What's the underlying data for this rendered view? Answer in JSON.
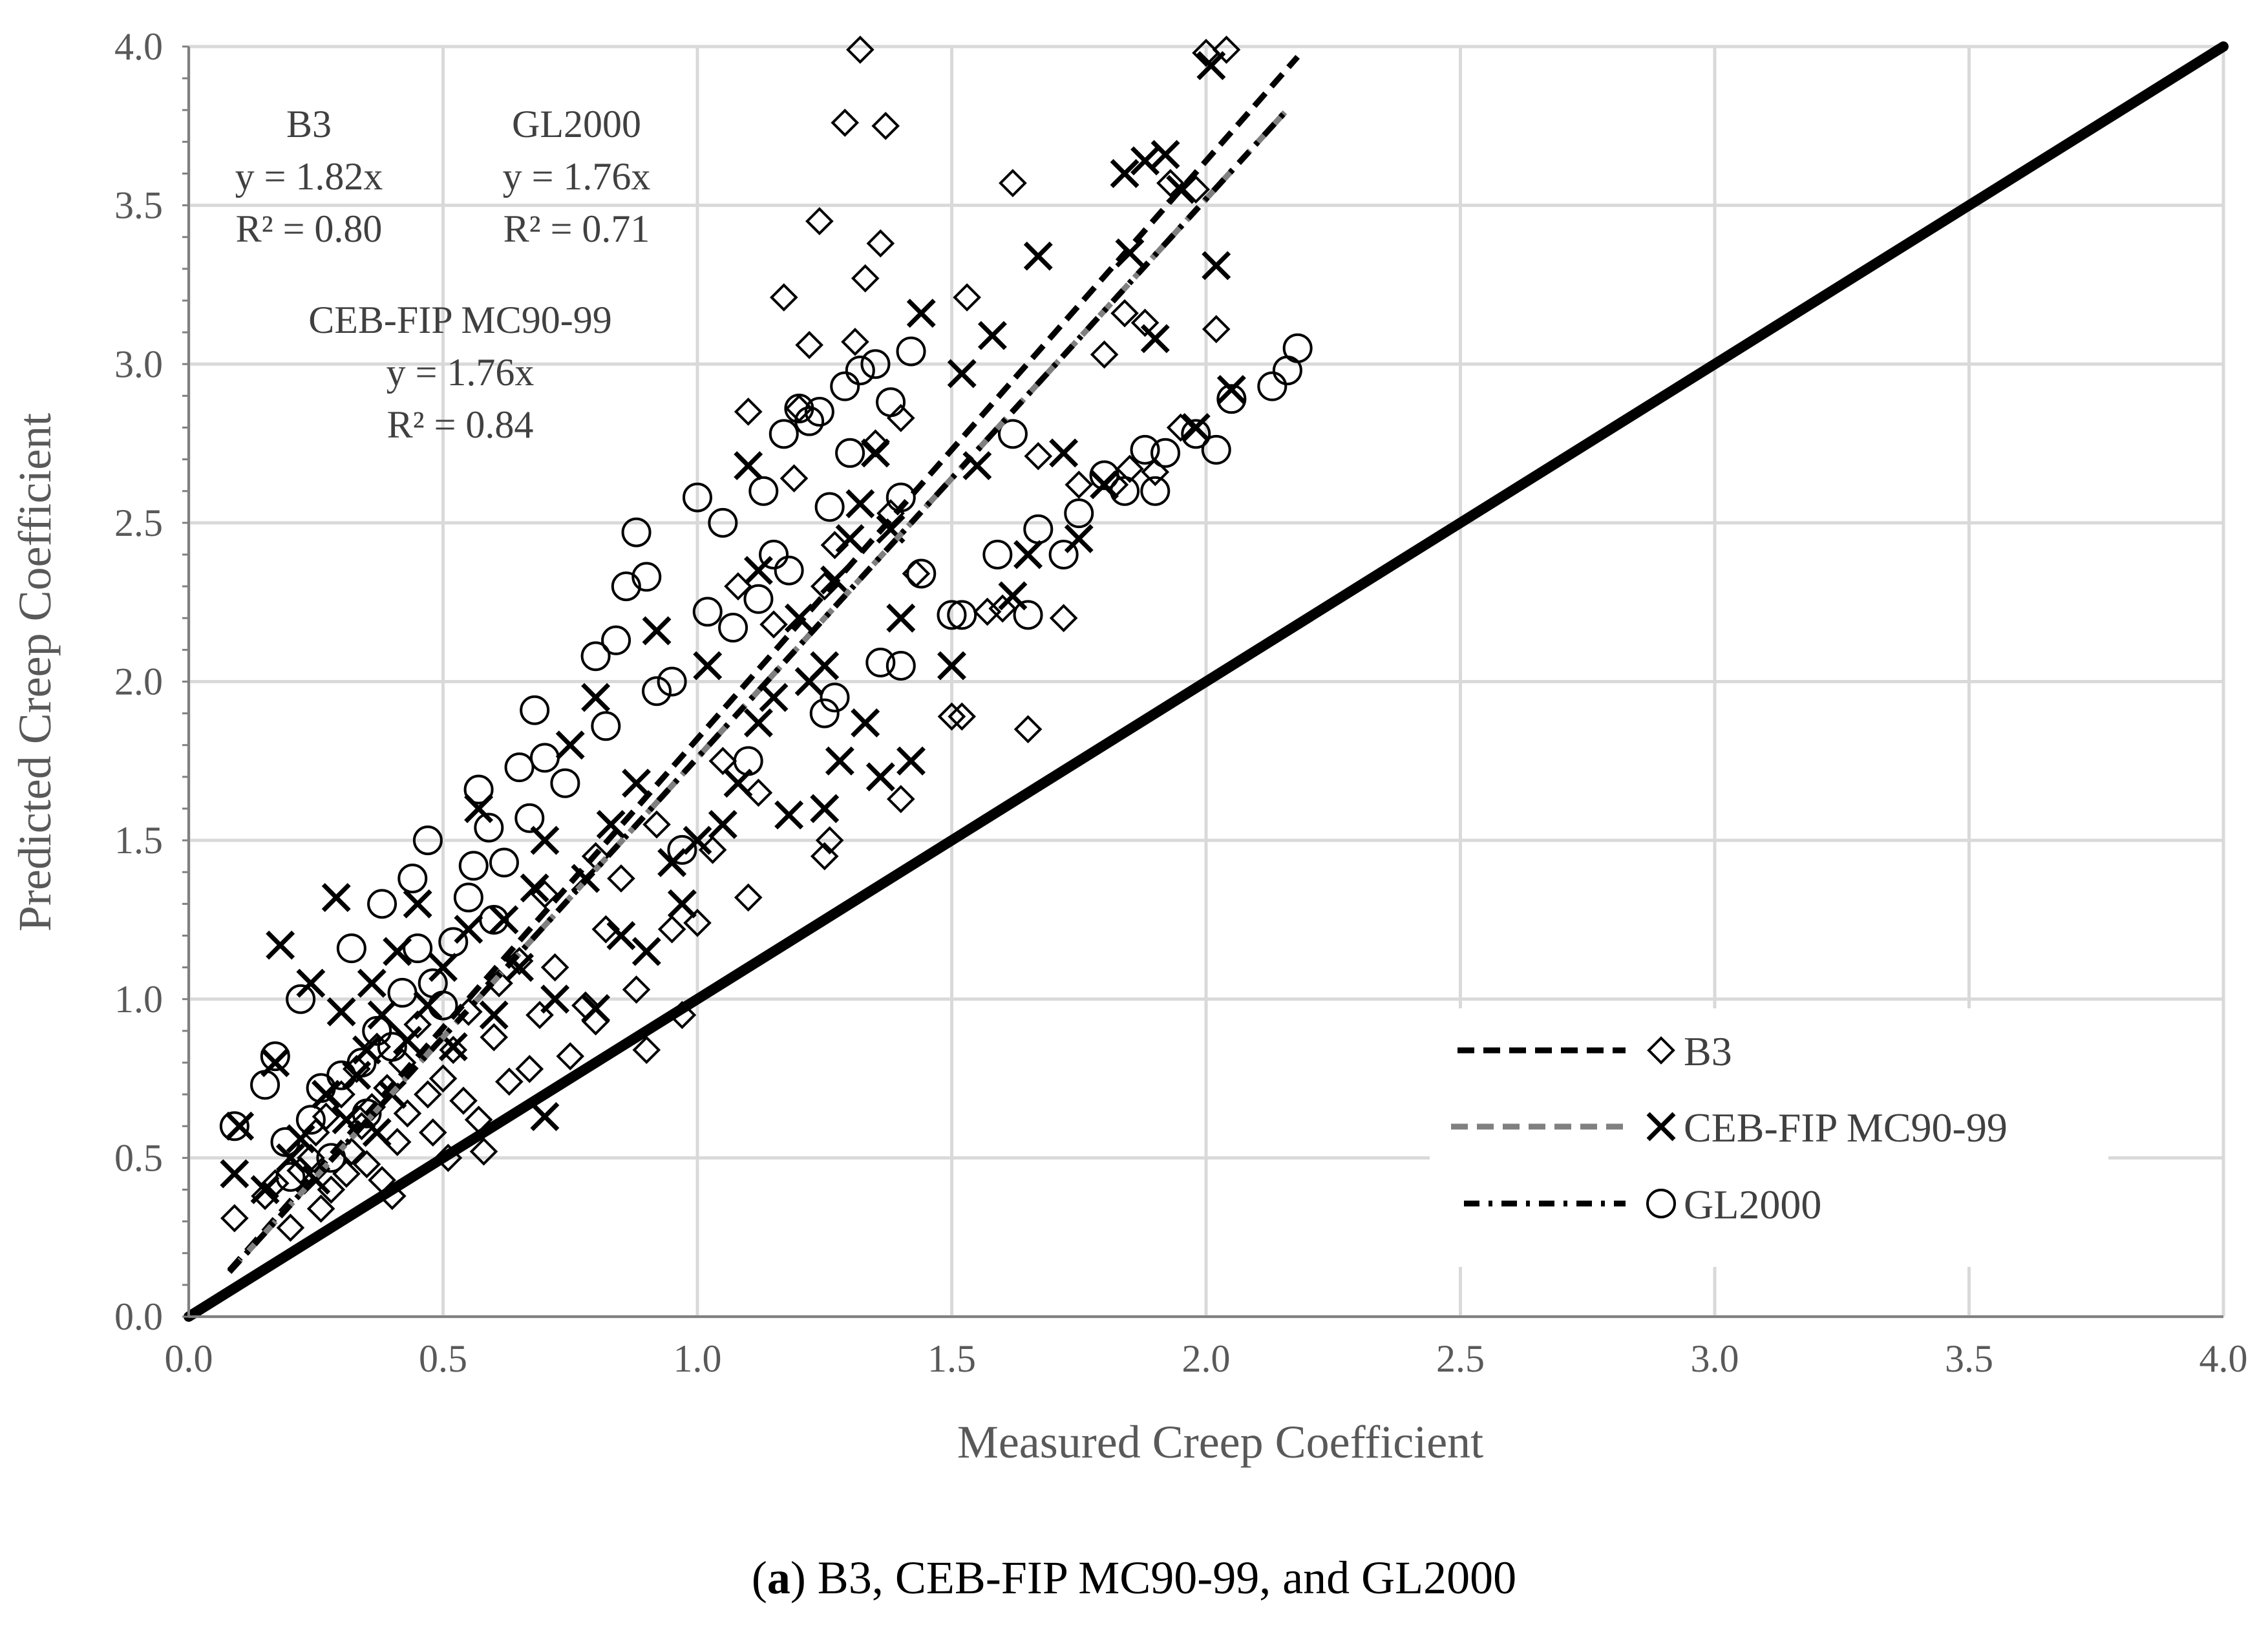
{
  "colors": {
    "grid": "#d9d9d9",
    "text": "#595959",
    "black": "#000000",
    "gray_dash": "#808080"
  },
  "caption": {
    "label": "a",
    "text": ") B3, CEB-FIP MC90-99, and GL2000",
    "open": "("
  },
  "chart_data": {
    "type": "scatter",
    "xlabel": "Measured Creep Coefficient",
    "ylabel": "Predicted Creep Coefficient",
    "xlim": [
      0,
      4
    ],
    "ylim": [
      0,
      4
    ],
    "xticks": [
      "0.0",
      "0.5",
      "1.0",
      "1.5",
      "2.0",
      "2.5",
      "3.0",
      "3.5",
      "4.0"
    ],
    "yticks": [
      "0.0",
      "0.5",
      "1.0",
      "1.5",
      "2.0",
      "2.5",
      "3.0",
      "3.5",
      "4.0"
    ],
    "grid": true,
    "legend_position": "bottom-right",
    "equality_line": {
      "x": [
        0,
        4
      ],
      "y": [
        0,
        4
      ]
    },
    "annotations": [
      {
        "lines": [
          "B3",
          "y = 1.82x",
          "R² = 0.80"
        ]
      },
      {
        "lines": [
          "GL2000",
          "y = 1.76x",
          "R² = 0.71"
        ]
      },
      {
        "lines": [
          "CEB-FIP MC90-99",
          "y = 1.76x",
          "R² = 0.84"
        ]
      }
    ],
    "series": [
      {
        "name": "B3",
        "marker": "diamond",
        "trend_style": "dashed",
        "trend_color": "#000000",
        "trend_slope": 1.82,
        "trend_x": [
          0.08,
          2.18
        ],
        "points": [
          [
            0.09,
            0.31
          ],
          [
            0.15,
            0.38
          ],
          [
            0.17,
            0.42
          ],
          [
            0.2,
            0.28
          ],
          [
            0.22,
            0.46
          ],
          [
            0.24,
            0.5
          ],
          [
            0.25,
            0.58
          ],
          [
            0.26,
            0.34
          ],
          [
            0.27,
            0.63
          ],
          [
            0.28,
            0.4
          ],
          [
            0.3,
            0.7
          ],
          [
            0.31,
            0.45
          ],
          [
            0.32,
            0.52
          ],
          [
            0.33,
            0.78
          ],
          [
            0.34,
            0.6
          ],
          [
            0.35,
            0.48
          ],
          [
            0.36,
            0.66
          ],
          [
            0.37,
            0.85
          ],
          [
            0.38,
            0.43
          ],
          [
            0.39,
            0.72
          ],
          [
            0.4,
            0.38
          ],
          [
            0.41,
            0.55
          ],
          [
            0.42,
            0.8
          ],
          [
            0.43,
            0.64
          ],
          [
            0.45,
            0.92
          ],
          [
            0.47,
            0.7
          ],
          [
            0.48,
            0.58
          ],
          [
            0.5,
            0.75
          ],
          [
            0.51,
            0.5
          ],
          [
            0.52,
            0.84
          ],
          [
            0.54,
            0.68
          ],
          [
            0.55,
            0.96
          ],
          [
            0.57,
            0.62
          ],
          [
            0.58,
            0.52
          ],
          [
            0.6,
            0.88
          ],
          [
            0.61,
            1.05
          ],
          [
            0.63,
            0.74
          ],
          [
            0.65,
            1.12
          ],
          [
            0.67,
            0.78
          ],
          [
            0.69,
            0.95
          ],
          [
            0.7,
            1.33
          ],
          [
            0.72,
            1.1
          ],
          [
            0.75,
            0.82
          ],
          [
            0.78,
            0.98
          ],
          [
            0.8,
            0.93
          ],
          [
            0.8,
            1.45
          ],
          [
            0.82,
            1.22
          ],
          [
            0.85,
            1.38
          ],
          [
            0.88,
            1.03
          ],
          [
            0.9,
            0.84
          ],
          [
            0.92,
            1.55
          ],
          [
            0.95,
            1.22
          ],
          [
            0.97,
            0.95
          ],
          [
            1.0,
            1.24
          ],
          [
            1.03,
            1.47
          ],
          [
            1.05,
            1.75
          ],
          [
            1.08,
            2.3
          ],
          [
            1.1,
            1.32
          ],
          [
            1.1,
            2.85
          ],
          [
            1.12,
            1.65
          ],
          [
            1.15,
            2.18
          ],
          [
            1.17,
            3.21
          ],
          [
            1.19,
            2.64
          ],
          [
            1.2,
            2.86
          ],
          [
            1.22,
            3.06
          ],
          [
            1.24,
            3.45
          ],
          [
            1.25,
            2.3
          ],
          [
            1.25,
            1.45
          ],
          [
            1.26,
            1.5
          ],
          [
            1.27,
            2.43
          ],
          [
            1.29,
            3.76
          ],
          [
            1.31,
            3.07
          ],
          [
            1.32,
            3.99
          ],
          [
            1.33,
            3.27
          ],
          [
            1.35,
            2.75
          ],
          [
            1.36,
            3.38
          ],
          [
            1.37,
            3.75
          ],
          [
            1.38,
            2.53
          ],
          [
            1.4,
            1.63
          ],
          [
            1.4,
            2.83
          ],
          [
            1.43,
            2.34
          ],
          [
            1.5,
            1.89
          ],
          [
            1.52,
            1.89
          ],
          [
            1.53,
            3.21
          ],
          [
            1.57,
            2.22
          ],
          [
            1.6,
            2.23
          ],
          [
            1.62,
            3.57
          ],
          [
            1.65,
            1.85
          ],
          [
            1.67,
            2.71
          ],
          [
            1.72,
            2.2
          ],
          [
            1.75,
            2.62
          ],
          [
            1.8,
            3.03
          ],
          [
            1.82,
            2.62
          ],
          [
            1.84,
            3.16
          ],
          [
            1.85,
            2.67
          ],
          [
            1.88,
            3.13
          ],
          [
            1.9,
            2.66
          ],
          [
            1.93,
            3.57
          ],
          [
            1.95,
            2.8
          ],
          [
            1.98,
            3.55
          ],
          [
            2.0,
            3.98
          ],
          [
            2.02,
            3.11
          ],
          [
            2.04,
            3.99
          ]
        ]
      },
      {
        "name": "CEB-FIP MC90-99",
        "marker": "x",
        "trend_style": "dashed",
        "trend_color": "#808080",
        "trend_slope": 1.76,
        "trend_x": [
          0.08,
          2.16
        ],
        "points": [
          [
            0.09,
            0.45
          ],
          [
            0.1,
            0.6
          ],
          [
            0.15,
            0.4
          ],
          [
            0.17,
            0.8
          ],
          [
            0.18,
            1.17
          ],
          [
            0.2,
            0.5
          ],
          [
            0.22,
            0.56
          ],
          [
            0.24,
            1.05
          ],
          [
            0.25,
            0.43
          ],
          [
            0.27,
            0.7
          ],
          [
            0.29,
            1.32
          ],
          [
            0.3,
            0.96
          ],
          [
            0.31,
            0.62
          ],
          [
            0.33,
            0.76
          ],
          [
            0.35,
            0.84
          ],
          [
            0.36,
            1.05
          ],
          [
            0.37,
            0.58
          ],
          [
            0.38,
            0.95
          ],
          [
            0.4,
            0.7
          ],
          [
            0.41,
            1.15
          ],
          [
            0.43,
            0.87
          ],
          [
            0.45,
            1.3
          ],
          [
            0.47,
            0.98
          ],
          [
            0.5,
            1.1
          ],
          [
            0.52,
            0.85
          ],
          [
            0.55,
            1.22
          ],
          [
            0.57,
            1.6
          ],
          [
            0.6,
            0.95
          ],
          [
            0.62,
            1.25
          ],
          [
            0.65,
            1.1
          ],
          [
            0.68,
            1.35
          ],
          [
            0.7,
            1.5
          ],
          [
            0.7,
            0.63
          ],
          [
            0.72,
            1.0
          ],
          [
            0.75,
            1.8
          ],
          [
            0.78,
            1.38
          ],
          [
            0.8,
            1.95
          ],
          [
            0.8,
            0.97
          ],
          [
            0.83,
            1.55
          ],
          [
            0.85,
            1.2
          ],
          [
            0.88,
            1.68
          ],
          [
            0.9,
            1.15
          ],
          [
            0.92,
            2.16
          ],
          [
            0.95,
            1.43
          ],
          [
            0.97,
            1.3
          ],
          [
            1.0,
            1.5
          ],
          [
            1.02,
            2.05
          ],
          [
            1.05,
            1.55
          ],
          [
            1.08,
            1.68
          ],
          [
            1.1,
            2.68
          ],
          [
            1.12,
            1.87
          ],
          [
            1.12,
            2.35
          ],
          [
            1.15,
            1.95
          ],
          [
            1.18,
            1.58
          ],
          [
            1.2,
            2.2
          ],
          [
            1.22,
            2.0
          ],
          [
            1.25,
            1.6
          ],
          [
            1.25,
            2.05
          ],
          [
            1.27,
            2.32
          ],
          [
            1.28,
            1.75
          ],
          [
            1.3,
            2.45
          ],
          [
            1.32,
            2.56
          ],
          [
            1.33,
            1.87
          ],
          [
            1.35,
            2.72
          ],
          [
            1.36,
            1.7
          ],
          [
            1.38,
            2.48
          ],
          [
            1.4,
            2.2
          ],
          [
            1.42,
            1.75
          ],
          [
            1.44,
            3.16
          ],
          [
            1.5,
            2.05
          ],
          [
            1.52,
            2.97
          ],
          [
            1.55,
            2.68
          ],
          [
            1.58,
            3.09
          ],
          [
            1.62,
            2.27
          ],
          [
            1.65,
            2.4
          ],
          [
            1.67,
            3.34
          ],
          [
            1.72,
            2.72
          ],
          [
            1.75,
            2.45
          ],
          [
            1.8,
            2.62
          ],
          [
            1.84,
            3.6
          ],
          [
            1.85,
            3.35
          ],
          [
            1.88,
            3.64
          ],
          [
            1.9,
            3.08
          ],
          [
            1.92,
            3.66
          ],
          [
            1.95,
            3.55
          ],
          [
            1.98,
            2.8
          ],
          [
            2.01,
            3.94
          ],
          [
            2.02,
            3.31
          ],
          [
            2.05,
            2.92
          ]
        ]
      },
      {
        "name": "GL2000",
        "marker": "circle",
        "trend_style": "dashdot",
        "trend_color": "#000000",
        "trend_slope": 1.76,
        "trend_x": [
          0.08,
          2.16
        ],
        "points": [
          [
            0.09,
            0.6
          ],
          [
            0.15,
            0.73
          ],
          [
            0.17,
            0.82
          ],
          [
            0.19,
            0.55
          ],
          [
            0.2,
            0.44
          ],
          [
            0.22,
            1.0
          ],
          [
            0.24,
            0.62
          ],
          [
            0.26,
            0.72
          ],
          [
            0.28,
            0.5
          ],
          [
            0.3,
            0.76
          ],
          [
            0.32,
            1.16
          ],
          [
            0.34,
            0.8
          ],
          [
            0.35,
            0.64
          ],
          [
            0.37,
            0.9
          ],
          [
            0.38,
            1.3
          ],
          [
            0.4,
            0.85
          ],
          [
            0.42,
            1.02
          ],
          [
            0.44,
            1.38
          ],
          [
            0.45,
            1.16
          ],
          [
            0.47,
            1.5
          ],
          [
            0.48,
            1.05
          ],
          [
            0.5,
            0.98
          ],
          [
            0.52,
            1.18
          ],
          [
            0.55,
            1.32
          ],
          [
            0.56,
            1.42
          ],
          [
            0.57,
            1.66
          ],
          [
            0.59,
            1.54
          ],
          [
            0.6,
            1.25
          ],
          [
            0.62,
            1.43
          ],
          [
            0.65,
            1.73
          ],
          [
            0.67,
            1.57
          ],
          [
            0.68,
            1.91
          ],
          [
            0.7,
            1.76
          ],
          [
            0.74,
            1.68
          ],
          [
            0.8,
            2.08
          ],
          [
            0.82,
            1.86
          ],
          [
            0.84,
            2.13
          ],
          [
            0.86,
            2.3
          ],
          [
            0.88,
            2.47
          ],
          [
            0.9,
            2.33
          ],
          [
            0.92,
            1.97
          ],
          [
            0.95,
            2.0
          ],
          [
            0.97,
            1.47
          ],
          [
            1.0,
            2.58
          ],
          [
            1.02,
            2.22
          ],
          [
            1.05,
            2.5
          ],
          [
            1.07,
            2.17
          ],
          [
            1.1,
            1.75
          ],
          [
            1.12,
            2.26
          ],
          [
            1.13,
            2.6
          ],
          [
            1.15,
            2.4
          ],
          [
            1.17,
            2.78
          ],
          [
            1.18,
            2.35
          ],
          [
            1.2,
            2.86
          ],
          [
            1.22,
            2.82
          ],
          [
            1.24,
            2.85
          ],
          [
            1.25,
            1.9
          ],
          [
            1.26,
            2.55
          ],
          [
            1.27,
            1.95
          ],
          [
            1.29,
            2.93
          ],
          [
            1.3,
            2.72
          ],
          [
            1.32,
            2.98
          ],
          [
            1.35,
            3.0
          ],
          [
            1.36,
            2.06
          ],
          [
            1.38,
            2.88
          ],
          [
            1.4,
            2.05
          ],
          [
            1.4,
            2.58
          ],
          [
            1.42,
            3.04
          ],
          [
            1.44,
            2.34
          ],
          [
            1.5,
            2.21
          ],
          [
            1.52,
            2.21
          ],
          [
            1.59,
            2.4
          ],
          [
            1.62,
            2.78
          ],
          [
            1.65,
            2.21
          ],
          [
            1.67,
            2.48
          ],
          [
            1.72,
            2.4
          ],
          [
            1.75,
            2.53
          ],
          [
            1.8,
            2.65
          ],
          [
            1.84,
            2.6
          ],
          [
            1.88,
            2.73
          ],
          [
            1.9,
            2.6
          ],
          [
            1.92,
            2.72
          ],
          [
            1.98,
            2.78
          ],
          [
            2.02,
            2.73
          ],
          [
            2.05,
            2.89
          ],
          [
            2.13,
            2.93
          ],
          [
            2.16,
            2.98
          ],
          [
            2.18,
            3.05
          ]
        ]
      }
    ],
    "legend": [
      {
        "label": "B3",
        "marker": "diamond",
        "line": "dashed",
        "color": "#000000"
      },
      {
        "label": "CEB-FIP MC90-99",
        "marker": "x",
        "line": "dashed",
        "color": "#808080"
      },
      {
        "label": "GL2000",
        "marker": "circle",
        "line": "dashdot",
        "color": "#000000"
      }
    ]
  }
}
